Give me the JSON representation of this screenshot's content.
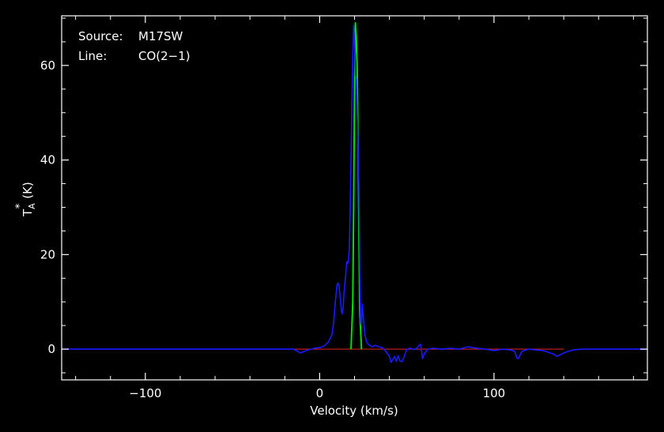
{
  "annotation": {
    "source_key": "Source:",
    "source_value": "M17SW",
    "line_key": "Line:",
    "line_value": "CO(2−1)"
  },
  "axes": {
    "xlabel": "Velocity (km/s)",
    "ylabel_main": "T",
    "ylabel_sub": "A",
    "ylabel_sup": "*",
    "ylabel_unit": "(K)"
  },
  "chart_data": {
    "type": "line",
    "xlim": [
      -148,
      188
    ],
    "ylim": [
      -6.5,
      70.5
    ],
    "x_ticks": [
      -100,
      0,
      100
    ],
    "x_tick_labels": [
      "−100",
      "0",
      "100"
    ],
    "y_ticks": [
      0,
      20,
      40,
      60
    ],
    "y_tick_labels": [
      "0",
      "20",
      "40",
      "60"
    ],
    "grid": false,
    "colors": {
      "frame": "#ffffff",
      "observed": "#1a1aff",
      "model": "#00e000",
      "baseline": "#d02020"
    },
    "baseline": {
      "x": [
        -15,
        140
      ],
      "y": [
        0,
        0
      ]
    },
    "series": [
      {
        "id": "model",
        "x": [
          18,
          19,
          19.5,
          20,
          20.5,
          21,
          21.5,
          22,
          22.5,
          23,
          24
        ],
        "y": [
          0,
          10,
          30,
          55,
          69,
          66,
          60,
          45,
          25,
          8,
          0
        ]
      },
      {
        "id": "observed",
        "x": [
          -148,
          -130,
          -110,
          -90,
          -70,
          -50,
          -30,
          -20,
          -15,
          -13,
          -11,
          -9,
          -7,
          -5,
          -3,
          -1,
          1,
          3,
          5,
          7,
          8,
          9,
          10,
          10.5,
          11,
          11.5,
          12,
          12.5,
          13,
          13.5,
          14,
          15,
          15.5,
          16,
          16.5,
          17,
          17.5,
          18,
          18.5,
          19,
          19.5,
          20,
          20.5,
          21,
          21.5,
          22,
          22.5,
          23,
          23.5,
          24,
          24.5,
          25,
          26,
          27,
          28,
          30,
          32,
          34,
          36,
          38,
          40,
          41,
          42,
          43,
          44,
          45,
          46,
          47,
          48,
          49,
          50,
          52,
          54,
          56,
          57,
          58,
          59,
          60,
          62,
          65,
          70,
          75,
          80,
          85,
          90,
          95,
          100,
          105,
          110,
          112,
          113,
          114,
          115,
          116,
          118,
          120,
          125,
          128,
          130,
          132,
          134,
          136,
          138,
          140,
          145,
          150,
          160,
          170,
          180,
          188
        ],
        "y": [
          0,
          0,
          0,
          0,
          0,
          0,
          0,
          0,
          0,
          -0.4,
          -0.8,
          -0.5,
          -0.2,
          0,
          0.2,
          0.3,
          0.4,
          0.8,
          1.5,
          3,
          5.5,
          10,
          13.5,
          14,
          13.5,
          12,
          10,
          8,
          7.5,
          9,
          12,
          16,
          18.5,
          18,
          19,
          21,
          30,
          40,
          52,
          62,
          68.5,
          65,
          58,
          57,
          50,
          44,
          35,
          20,
          6,
          5,
          9.5,
          7,
          3,
          1.5,
          1,
          0.5,
          0.8,
          0.5,
          0.3,
          -0.5,
          -1.5,
          -2.8,
          -2.2,
          -1.5,
          -2.6,
          -1.4,
          -2.4,
          -2.7,
          -2,
          -1,
          0,
          0.2,
          -0.1,
          0.3,
          0.8,
          1,
          -2,
          -1,
          0,
          0.2,
          0,
          0.2,
          0,
          0.5,
          0.2,
          0,
          -0.3,
          0,
          -0.2,
          -0.5,
          -1.8,
          -2,
          -1.2,
          -0.5,
          -0.2,
          0,
          -0.2,
          -0.3,
          -0.5,
          -0.8,
          -1,
          -1.5,
          -1.2,
          -0.8,
          -0.2,
          0,
          0,
          0,
          0,
          0
        ]
      }
    ]
  }
}
